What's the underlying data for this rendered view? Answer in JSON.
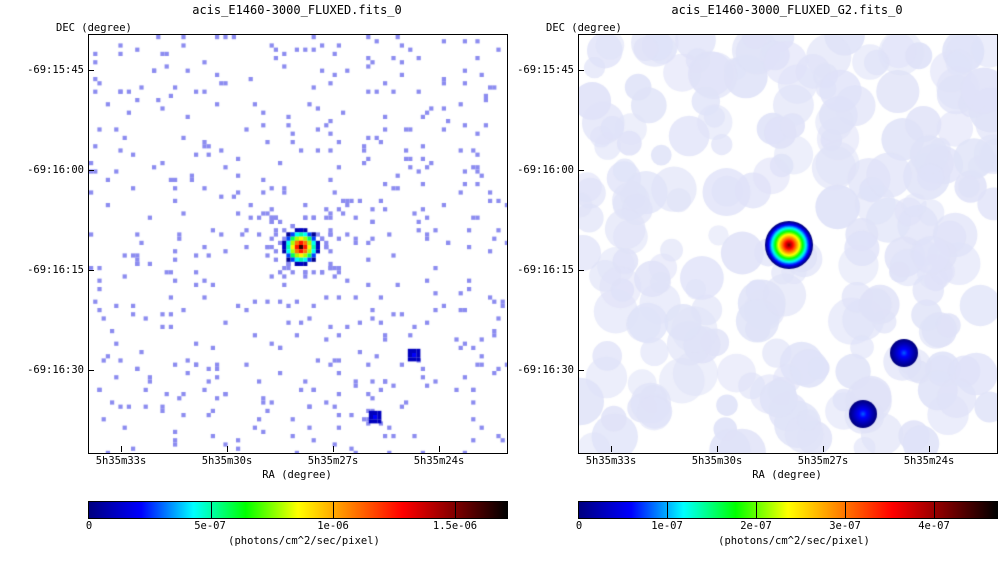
{
  "panels": [
    {
      "title": "acis_E1460-3000_FLUXED.fits_0",
      "dec_label": "DEC (degree)",
      "ra_label": "RA (degree)",
      "dec_ticks": [
        "-69:15:45",
        "-69:16:00",
        "-69:16:15",
        "-69:16:30"
      ],
      "ra_ticks": [
        "5h35m33s",
        "5h35m30s",
        "5h35m27s",
        "5h35m24s"
      ],
      "colorbar_ticks": [
        "0",
        "5e-07",
        "1e-06",
        "1.5e-06"
      ],
      "colorbar_label": "(photons/cm^2/sec/pixel)",
      "kind": "raw"
    },
    {
      "title": "acis_E1460-3000_FLUXED_G2.fits_0",
      "dec_label": "DEC (degree)",
      "ra_label": "RA (degree)",
      "dec_ticks": [
        "-69:15:45",
        "-69:16:00",
        "-69:16:15",
        "-69:16:30"
      ],
      "ra_ticks": [
        "5h35m33s",
        "5h35m30s",
        "5h35m27s",
        "5h35m24s"
      ],
      "colorbar_ticks": [
        "0",
        "1e-07",
        "2e-07",
        "3e-07",
        "4e-07"
      ],
      "colorbar_label": "(photons/cm^2/sec/pixel)",
      "kind": "smoothed"
    }
  ],
  "colors": {
    "sparse_pixel": "#8c8cf0",
    "smooth_haze": "#dfe2f8",
    "colormap": [
      "#000080",
      "#0000ff",
      "#00ffff",
      "#00ff00",
      "#ffff00",
      "#ff8000",
      "#ff0000",
      "#800000",
      "#000000"
    ]
  }
}
